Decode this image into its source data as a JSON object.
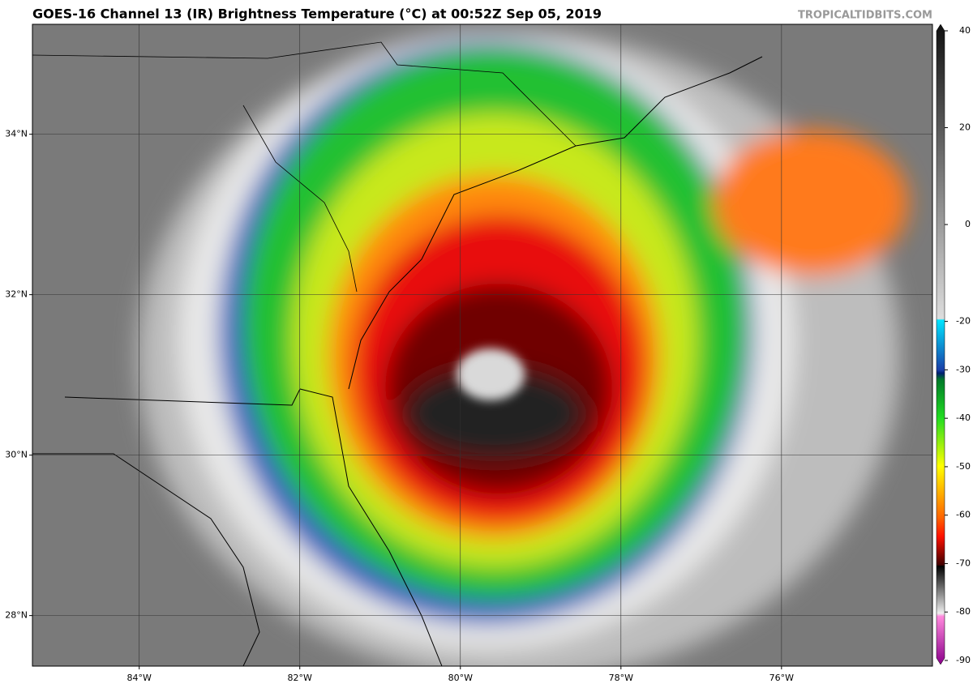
{
  "header": {
    "title": "GOES-16 Channel 13 (IR) Brightness Temperature (°C) at 00:52Z Sep 05, 2019",
    "credit": "TROPICALTIDBITS.COM"
  },
  "map": {
    "lonlim": [
      -85.33,
      -74.12
    ],
    "latlim": [
      27.37,
      35.37
    ],
    "lon_ticks": [
      {
        "value": -84,
        "label": "84°W"
      },
      {
        "value": -82,
        "label": "82°W"
      },
      {
        "value": -80,
        "label": "80°W"
      },
      {
        "value": -78,
        "label": "78°W"
      },
      {
        "value": -76,
        "label": "76°W"
      }
    ],
    "lat_ticks": [
      {
        "value": 28,
        "label": "28°N"
      },
      {
        "value": 30,
        "label": "30°N"
      },
      {
        "value": 32,
        "label": "32°N"
      },
      {
        "value": 34,
        "label": "34°N"
      }
    ]
  },
  "colorbar": {
    "lim": [
      -90,
      40
    ],
    "ticks": [
      40,
      20,
      0,
      -20,
      -30,
      -40,
      -50,
      -60,
      -70,
      -80,
      -90
    ]
  }
}
